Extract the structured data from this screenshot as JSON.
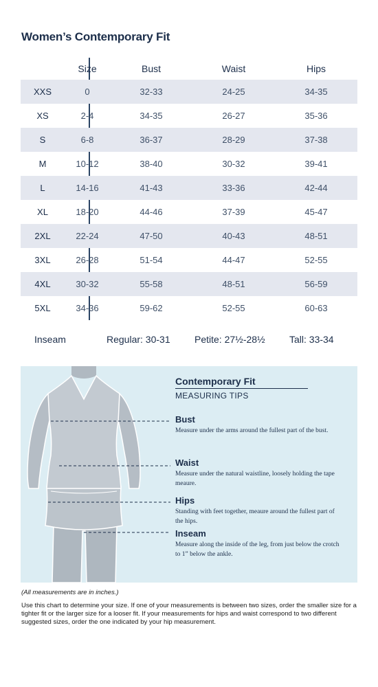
{
  "title": "Women’s Contemporary Fit",
  "table": {
    "headers": {
      "size": "Size",
      "bust": "Bust",
      "waist": "Waist",
      "hips": "Hips"
    },
    "rows": [
      {
        "label": "XXS",
        "size": "0",
        "bust": "32-33",
        "waist": "24-25",
        "hips": "34-35"
      },
      {
        "label": "XS",
        "size": "2-4",
        "bust": "34-35",
        "waist": "26-27",
        "hips": "35-36"
      },
      {
        "label": "S",
        "size": "6-8",
        "bust": "36-37",
        "waist": "28-29",
        "hips": "37-38"
      },
      {
        "label": "M",
        "size": "10-12",
        "bust": "38-40",
        "waist": "30-32",
        "hips": "39-41"
      },
      {
        "label": "L",
        "size": "14-16",
        "bust": "41-43",
        "waist": "33-36",
        "hips": "42-44"
      },
      {
        "label": "XL",
        "size": "18-20",
        "bust": "44-46",
        "waist": "37-39",
        "hips": "45-47"
      },
      {
        "label": "2XL",
        "size": "22-24",
        "bust": "47-50",
        "waist": "40-43",
        "hips": "48-51"
      },
      {
        "label": "3XL",
        "size": "26-28",
        "bust": "51-54",
        "waist": "44-47",
        "hips": "52-55"
      },
      {
        "label": "4XL",
        "size": "30-32",
        "bust": "55-58",
        "waist": "48-51",
        "hips": "56-59"
      },
      {
        "label": "5XL",
        "size": "34-36",
        "bust": "59-62",
        "waist": "52-55",
        "hips": "60-63"
      }
    ]
  },
  "inseam": {
    "label": "Inseam",
    "regular": "Regular: 30-31",
    "petite": "Petite: 27½-28½",
    "tall": "Tall: 33-34"
  },
  "tips": {
    "title": "Contemporary Fit",
    "subtitle": "MEASURING TIPS",
    "bust": {
      "heading": "Bust",
      "text": "Measure under the arms around the fullest part of the bust."
    },
    "waist": {
      "heading": "Waist",
      "text": "Measure under the natural waistline, loosely holding the tape meaure."
    },
    "hips": {
      "heading": "Hips",
      "text": "Standing with feet together, meaure around the fullest part of the hips."
    },
    "inseam": {
      "heading": "Inseam",
      "text": "Measure along the inside of the leg, from just below the crotch to 1” below the ankle."
    }
  },
  "notes": {
    "units": "(All measurements are in inches.)",
    "instructions": "Use this chart to determine your size. If one of your measurements is between two sizes, order the smaller size for a tighter fit or the larger size for a looser fit. If your measurements for hips and waist correspond to two different suggested sizes, order the one indicated by your hip measurement."
  },
  "colors": {
    "row_shade": "#e4e7ef",
    "panel_bg": "#dcedf3",
    "navy": "#1c2e4a",
    "figure": "#b7bfc6"
  }
}
